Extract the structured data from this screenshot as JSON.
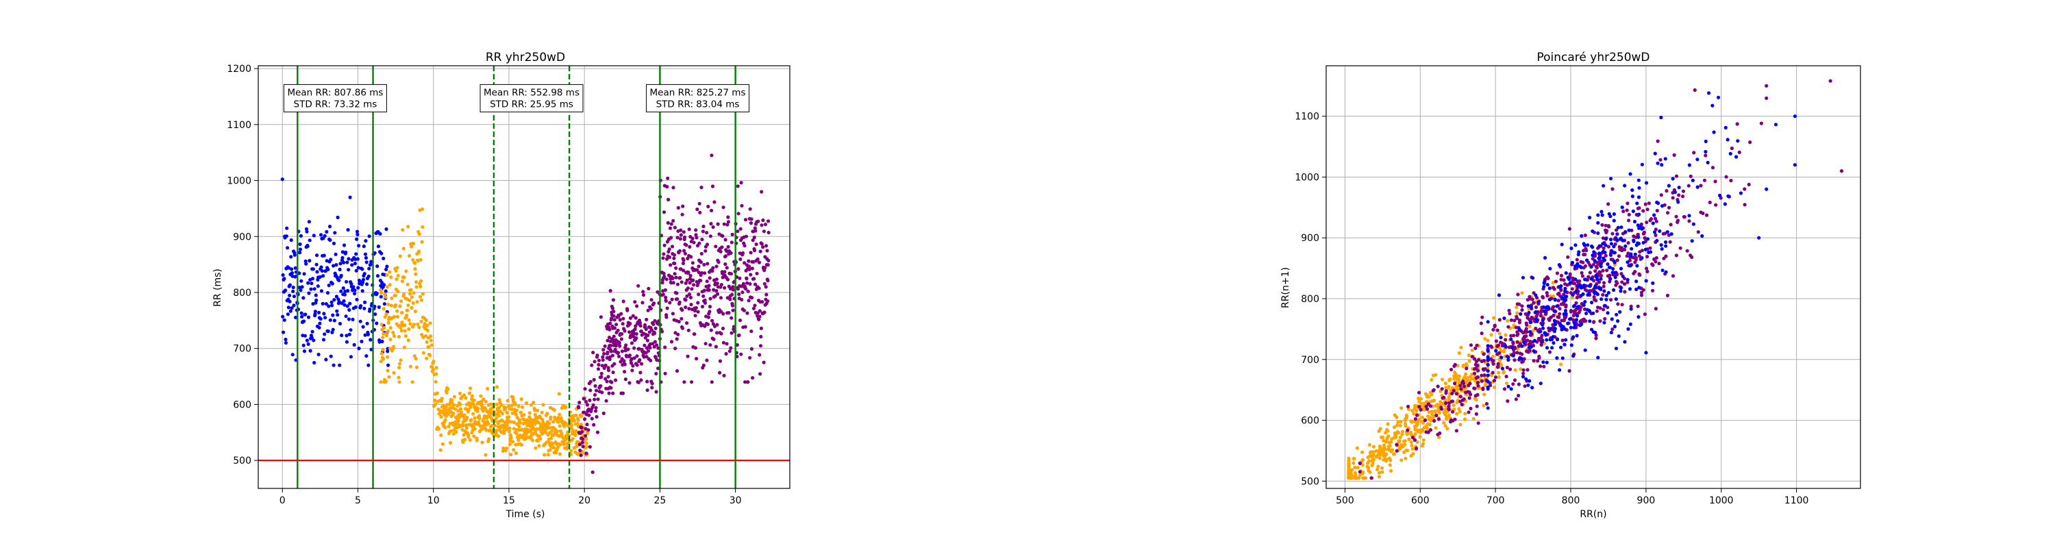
{
  "colors": {
    "pre": "#0000ff",
    "transition": "#ffa500",
    "post": "#800080",
    "marker_solid": "#008000",
    "marker_dashed": "#008000",
    "threshold": "#ff0000",
    "grid": "#b0b0b0"
  },
  "chart_data": [
    {
      "type": "scatter",
      "title": "RR yhr250wD",
      "xlabel": "Time (s)",
      "ylabel": "RR (ms)",
      "xlim": [
        -1.6,
        33.6
      ],
      "ylim": [
        450,
        1205
      ],
      "xticks": [
        0,
        5,
        10,
        15,
        20,
        25,
        30
      ],
      "yticks": [
        500,
        600,
        700,
        800,
        900,
        1000,
        1100,
        1200
      ],
      "grid": true,
      "vertical_lines": [
        {
          "x": 1,
          "style": "solid"
        },
        {
          "x": 6,
          "style": "solid"
        },
        {
          "x": 14,
          "style": "dashed"
        },
        {
          "x": 19,
          "style": "dashed"
        },
        {
          "x": 25,
          "style": "solid"
        },
        {
          "x": 30,
          "style": "solid"
        }
      ],
      "horizontal_lines": [
        {
          "y": 500,
          "style": "solid",
          "color_key": "threshold"
        }
      ],
      "annotations": [
        {
          "lines": [
            "Mean RR: 807.86 ms",
            "STD RR: 73.32 ms"
          ],
          "x": 3.5,
          "y": 1147
        },
        {
          "lines": [
            "Mean RR: 552.98 ms",
            "STD RR: 25.95 ms"
          ],
          "x": 16.5,
          "y": 1147
        },
        {
          "lines": [
            "Mean RR: 825.27 ms",
            "STD RR: 83.04 ms"
          ],
          "x": 27.5,
          "y": 1147
        }
      ],
      "series": [
        {
          "segment": "pre",
          "color_key": "pre",
          "x_range": [
            0,
            7
          ],
          "y_mean": 808,
          "y_std": 70,
          "y_clip": [
            670,
            1100
          ],
          "count": 360
        },
        {
          "segment": "transition_rise",
          "color_key": "transition",
          "x_range": [
            6.5,
            9.3
          ],
          "y_start": 720,
          "y_end": 810,
          "y_std": 60,
          "y_clip": [
            640,
            970
          ],
          "count": 160
        },
        {
          "segment": "transition_drop",
          "color_key": "transition",
          "x_range": [
            9.3,
            10.5
          ],
          "y_start": 760,
          "y_end": 590,
          "y_std": 35,
          "count": 50
        },
        {
          "segment": "transition_low",
          "color_key": "transition",
          "x_range": [
            10.5,
            20.2
          ],
          "y_start": 585,
          "y_end": 545,
          "y_std": 22,
          "y_clip": [
            510,
            650
          ],
          "count": 640
        },
        {
          "segment": "post_rise",
          "color_key": "post",
          "x_range": [
            19.6,
            22
          ],
          "y_start": 545,
          "y_end": 720,
          "y_std": 35,
          "count": 110
        },
        {
          "segment": "post_mid",
          "color_key": "post",
          "x_range": [
            21.5,
            25
          ],
          "y_start": 690,
          "y_end": 730,
          "y_std": 45,
          "y_clip": [
            620,
            880
          ],
          "count": 220
        },
        {
          "segment": "post_high",
          "color_key": "post",
          "x_range": [
            25,
            32.2
          ],
          "y_start": 820,
          "y_end": 825,
          "y_std": 75,
          "y_clip": [
            640,
            1045
          ],
          "count": 520
        }
      ]
    },
    {
      "type": "scatter",
      "title": "Poincaré yhr250wD",
      "xlabel": "RR(n)",
      "ylabel": "RR(n+1)",
      "xlim": [
        475,
        1185
      ],
      "ylim": [
        488,
        1183
      ],
      "xticks": [
        500,
        600,
        700,
        800,
        900,
        1000,
        1100
      ],
      "yticks": [
        500,
        600,
        700,
        800,
        900,
        1000,
        1100
      ],
      "grid": true,
      "series": [
        {
          "name_key": "transition",
          "color_key": "transition",
          "x_range": [
            505,
            900
          ],
          "x_center": 600,
          "x_spread": 90,
          "noise": 25,
          "count": 650
        },
        {
          "name_key": "post",
          "color_key": "post",
          "x_range": [
            520,
            1060
          ],
          "x_center": 790,
          "x_spread": 95,
          "noise": 30,
          "count": 750
        },
        {
          "name_key": "pre",
          "color_key": "pre",
          "x_range": [
            690,
            1100
          ],
          "x_center": 830,
          "x_spread": 80,
          "noise": 38,
          "count": 380
        }
      ]
    }
  ]
}
